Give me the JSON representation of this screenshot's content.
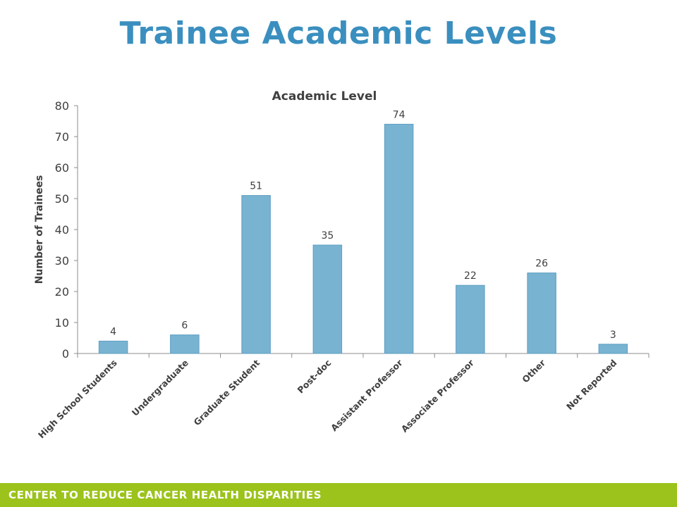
{
  "slide": {
    "title": "Trainee Academic Levels"
  },
  "footer": {
    "text": "CENTER TO REDUCE CANCER HEALTH DISPARITIES"
  },
  "colors": {
    "title": "#3a8fbf",
    "bar": "#78b3d1",
    "bar_edge": "#5f9fc2",
    "axis": "#8c8c8c",
    "text": "#404040",
    "footer": "#9bc31b"
  },
  "chart_data": {
    "type": "bar",
    "title": "Academic Level",
    "xlabel": "",
    "ylabel": "Number of Trainees",
    "categories": [
      "High School Students",
      "Undergraduate",
      "Graduate Student",
      "Post-doc",
      "Assistant Professor",
      "Associate Professor",
      "Other",
      "Not Reported"
    ],
    "values": [
      4,
      6,
      51,
      35,
      74,
      22,
      26,
      3
    ],
    "data_labels": [
      "4",
      "6",
      "51",
      "35",
      "74",
      "22",
      "26",
      "3"
    ],
    "ylim": [
      0,
      80
    ],
    "yticks": [
      "0",
      "10",
      "20",
      "30",
      "40",
      "50",
      "60",
      "70",
      "80"
    ],
    "grid": false,
    "legend": "none"
  }
}
